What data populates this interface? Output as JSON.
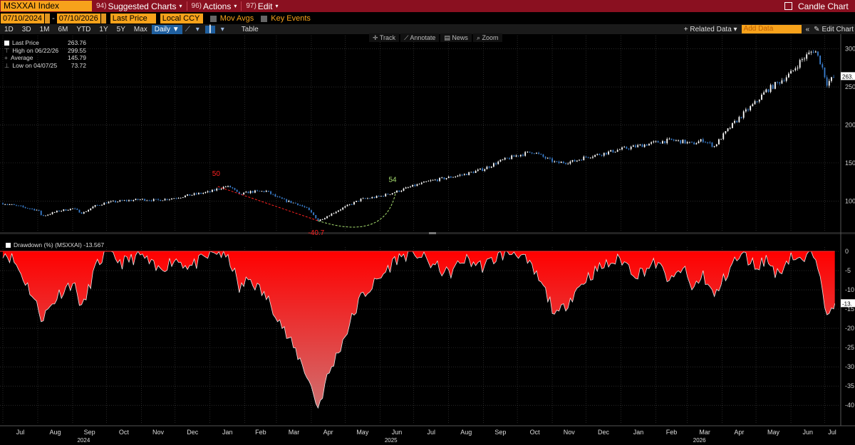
{
  "titlebar": {
    "ticker": "MSXXAI Index",
    "menus": [
      {
        "num": "94)",
        "label": "Suggested Charts"
      },
      {
        "num": "96)",
        "label": "Actions"
      },
      {
        "num": "97)",
        "label": "Edit"
      }
    ],
    "right_label": "Candle Chart"
  },
  "controls": {
    "start_date": "07/10/2024",
    "end_date": "07/10/2026",
    "field": "Last Price",
    "currency": "Local CCY",
    "mov_avgs": "Mov Avgs",
    "key_events": "Key Events",
    "periods": [
      "1D",
      "3D",
      "1M",
      "6M",
      "YTD",
      "1Y",
      "5Y",
      "Max"
    ],
    "frequency": "Daily ▼",
    "table": "Table",
    "related_data": "+ Related Data ▾",
    "add_data_placeholder": "Add Data",
    "edit_chart": "Edit Chart"
  },
  "toolbar": [
    "Track",
    "Annotate",
    "News",
    "Zoom"
  ],
  "legend": {
    "last_price_label": "Last Price",
    "last_price_value": "263.76",
    "high_label": "High on 06/22/26",
    "high_value": "299.55",
    "average_label": "Average",
    "average_value": "145.79",
    "low_label": "Low on 04/07/25",
    "low_value": "73.72"
  },
  "drawdown_legend": "Drawdown (%) (MSXXAI) -13.567",
  "colors": {
    "titlebar": "#8a1020",
    "accent_orange": "#f7a21b",
    "candle_up": "#ffffff",
    "candle_down": "#3a7fd0",
    "drawdown_fill": "#ff0000",
    "annotation_red": "#ff2020",
    "annotation_green": "#a8e070"
  },
  "chart_data": [
    {
      "type": "candlestick",
      "title": "",
      "x_range": [
        "2024-07-01",
        "2026-07-14"
      ],
      "ylim": [
        60,
        310
      ],
      "yticks": [
        100,
        150,
        200,
        250,
        300
      ],
      "last_value_label": "263.",
      "grid": true,
      "series": [
        {
          "points": [
            [
              "2024-07-01",
              97
            ],
            [
              "2024-07-15",
              93
            ],
            [
              "2024-08-01",
              88
            ],
            [
              "2024-08-05",
              80
            ],
            [
              "2024-08-20",
              87
            ],
            [
              "2024-09-01",
              90
            ],
            [
              "2024-09-10",
              84
            ],
            [
              "2024-09-20",
              93
            ],
            [
              "2024-10-01",
              98
            ],
            [
              "2024-10-15",
              100
            ],
            [
              "2024-11-01",
              102
            ],
            [
              "2024-11-15",
              101
            ],
            [
              "2024-12-01",
              104
            ],
            [
              "2024-12-15",
              108
            ],
            [
              "2025-01-01",
              112
            ],
            [
              "2025-01-08",
              116
            ],
            [
              "2025-01-15",
              119
            ],
            [
              "2025-01-20",
              118
            ],
            [
              "2025-01-27",
              108
            ],
            [
              "2025-02-05",
              112
            ],
            [
              "2025-02-20",
              113
            ],
            [
              "2025-03-01",
              105
            ],
            [
              "2025-03-10",
              100
            ],
            [
              "2025-03-20",
              96
            ],
            [
              "2025-03-28",
              90
            ],
            [
              "2025-04-04",
              80
            ],
            [
              "2025-04-07",
              74
            ],
            [
              "2025-04-15",
              80
            ],
            [
              "2025-04-25",
              88
            ],
            [
              "2025-05-05",
              95
            ],
            [
              "2025-05-15",
              102
            ],
            [
              "2025-06-01",
              106
            ],
            [
              "2025-06-15",
              112
            ],
            [
              "2025-07-01",
              120
            ],
            [
              "2025-07-15",
              126
            ],
            [
              "2025-08-01",
              131
            ],
            [
              "2025-08-15",
              135
            ],
            [
              "2025-09-01",
              142
            ],
            [
              "2025-09-15",
              152
            ],
            [
              "2025-10-01",
              160
            ],
            [
              "2025-10-15",
              165
            ],
            [
              "2025-10-25",
              157
            ],
            [
              "2025-11-05",
              150
            ],
            [
              "2025-11-20",
              152
            ],
            [
              "2025-12-01",
              158
            ],
            [
              "2025-12-15",
              162
            ],
            [
              "2026-01-01",
              168
            ],
            [
              "2026-01-15",
              172
            ],
            [
              "2026-02-01",
              177
            ],
            [
              "2026-02-15",
              180
            ],
            [
              "2026-02-25",
              178
            ],
            [
              "2026-03-05",
              175
            ],
            [
              "2026-03-15",
              180
            ],
            [
              "2026-03-25",
              172
            ],
            [
              "2026-04-01",
              185
            ],
            [
              "2026-04-10",
              200
            ],
            [
              "2026-04-20",
              215
            ],
            [
              "2026-05-01",
              230
            ],
            [
              "2026-05-10",
              245
            ],
            [
              "2026-05-20",
              255
            ],
            [
              "2026-06-01",
              268
            ],
            [
              "2026-06-10",
              285
            ],
            [
              "2026-06-22",
              299.55
            ],
            [
              "2026-06-28",
              280
            ],
            [
              "2026-07-03",
              255
            ],
            [
              "2026-07-10",
              263.76
            ]
          ]
        }
      ],
      "annotations": [
        {
          "label": "50",
          "date": "2025-01-08",
          "value": 119,
          "color": "red"
        },
        {
          "label": "-40.7",
          "date": "2025-04-07",
          "value": 74,
          "color": "red"
        },
        {
          "label": "54",
          "date": "2025-06-15",
          "value": 112,
          "color": "green"
        }
      ]
    },
    {
      "type": "area",
      "title": "",
      "series_label": "Drawdown (%) (MSXXAI)",
      "x_range": [
        "2024-07-01",
        "2026-07-14"
      ],
      "ylim": [
        -42,
        0
      ],
      "yticks": [
        0,
        -5,
        -10,
        -15,
        -20,
        -25,
        -30,
        -35,
        -40
      ],
      "last_value_label": "-13.",
      "series": [
        {
          "points": [
            [
              "2024-07-01",
              0
            ],
            [
              "2024-07-10",
              -2
            ],
            [
              "2024-07-25",
              -10
            ],
            [
              "2024-08-05",
              -17.5
            ],
            [
              "2024-08-20",
              -11
            ],
            [
              "2024-09-01",
              -8
            ],
            [
              "2024-09-10",
              -15
            ],
            [
              "2024-09-20",
              -5
            ],
            [
              "2024-10-01",
              0
            ],
            [
              "2024-10-15",
              -3
            ],
            [
              "2024-11-01",
              -1
            ],
            [
              "2024-11-15",
              -5
            ],
            [
              "2024-12-01",
              -2
            ],
            [
              "2024-12-15",
              -4
            ],
            [
              "2025-01-01",
              -1
            ],
            [
              "2025-01-08",
              0
            ],
            [
              "2025-01-20",
              -3
            ],
            [
              "2025-01-27",
              -10
            ],
            [
              "2025-02-05",
              -7
            ],
            [
              "2025-02-20",
              -12
            ],
            [
              "2025-03-01",
              -16
            ],
            [
              "2025-03-10",
              -22
            ],
            [
              "2025-03-20",
              -27
            ],
            [
              "2025-03-28",
              -32
            ],
            [
              "2025-04-04",
              -38
            ],
            [
              "2025-04-07",
              -40.7
            ],
            [
              "2025-04-15",
              -33
            ],
            [
              "2025-04-25",
              -26
            ],
            [
              "2025-05-05",
              -19
            ],
            [
              "2025-05-15",
              -12
            ],
            [
              "2025-06-01",
              -7
            ],
            [
              "2025-06-15",
              -2
            ],
            [
              "2025-07-01",
              0
            ],
            [
              "2025-07-15",
              -3
            ],
            [
              "2025-08-01",
              -6
            ],
            [
              "2025-08-15",
              -2
            ],
            [
              "2025-09-01",
              -4
            ],
            [
              "2025-09-15",
              -1
            ],
            [
              "2025-10-01",
              0
            ],
            [
              "2025-10-15",
              -5
            ],
            [
              "2025-10-25",
              -10
            ],
            [
              "2025-11-05",
              -17
            ],
            [
              "2025-11-20",
              -11
            ],
            [
              "2025-12-01",
              -7
            ],
            [
              "2025-12-15",
              -4
            ],
            [
              "2026-01-01",
              -2
            ],
            [
              "2026-01-15",
              -6
            ],
            [
              "2026-02-01",
              -3
            ],
            [
              "2026-02-15",
              -8
            ],
            [
              "2026-02-25",
              -4
            ],
            [
              "2026-03-05",
              -10
            ],
            [
              "2026-03-15",
              -6
            ],
            [
              "2026-03-25",
              -12
            ],
            [
              "2026-04-01",
              -8
            ],
            [
              "2026-04-10",
              -3
            ],
            [
              "2026-04-20",
              -1
            ],
            [
              "2026-05-01",
              -4
            ],
            [
              "2026-05-10",
              -2
            ],
            [
              "2026-05-20",
              -6
            ],
            [
              "2026-06-01",
              -1
            ],
            [
              "2026-06-10",
              -3
            ],
            [
              "2026-06-22",
              0
            ],
            [
              "2026-06-28",
              -6
            ],
            [
              "2026-07-03",
              -18
            ],
            [
              "2026-07-10",
              -13.567
            ]
          ]
        }
      ]
    }
  ],
  "x_axis": {
    "months": [
      {
        "label": "Jul",
        "date": "2024-07-01"
      },
      {
        "label": "Aug",
        "date": "2024-08-01"
      },
      {
        "label": "Sep",
        "date": "2024-09-01"
      },
      {
        "label": "Oct",
        "date": "2024-10-01"
      },
      {
        "label": "Nov",
        "date": "2024-11-01"
      },
      {
        "label": "Dec",
        "date": "2024-12-01"
      },
      {
        "label": "Jan",
        "date": "2025-01-01"
      },
      {
        "label": "Feb",
        "date": "2025-02-01"
      },
      {
        "label": "Mar",
        "date": "2025-03-01"
      },
      {
        "label": "Apr",
        "date": "2025-04-01"
      },
      {
        "label": "May",
        "date": "2025-05-01"
      },
      {
        "label": "Jun",
        "date": "2025-06-01"
      },
      {
        "label": "Jul",
        "date": "2025-07-01"
      },
      {
        "label": "Aug",
        "date": "2025-08-01"
      },
      {
        "label": "Sep",
        "date": "2025-09-01"
      },
      {
        "label": "Oct",
        "date": "2025-10-01"
      },
      {
        "label": "Nov",
        "date": "2025-11-01"
      },
      {
        "label": "Dec",
        "date": "2025-12-01"
      },
      {
        "label": "Jan",
        "date": "2026-01-01"
      },
      {
        "label": "Feb",
        "date": "2026-02-01"
      },
      {
        "label": "Mar",
        "date": "2026-03-01"
      },
      {
        "label": "Apr",
        "date": "2026-04-01"
      },
      {
        "label": "May",
        "date": "2026-05-01"
      },
      {
        "label": "Jun",
        "date": "2026-06-01"
      },
      {
        "label": "Jul",
        "date": "2026-07-01"
      }
    ],
    "years": [
      {
        "label": "2024",
        "date": "2024-10-01"
      },
      {
        "label": "2025",
        "date": "2025-07-01"
      },
      {
        "label": "2026",
        "date": "2026-04-01"
      }
    ]
  }
}
